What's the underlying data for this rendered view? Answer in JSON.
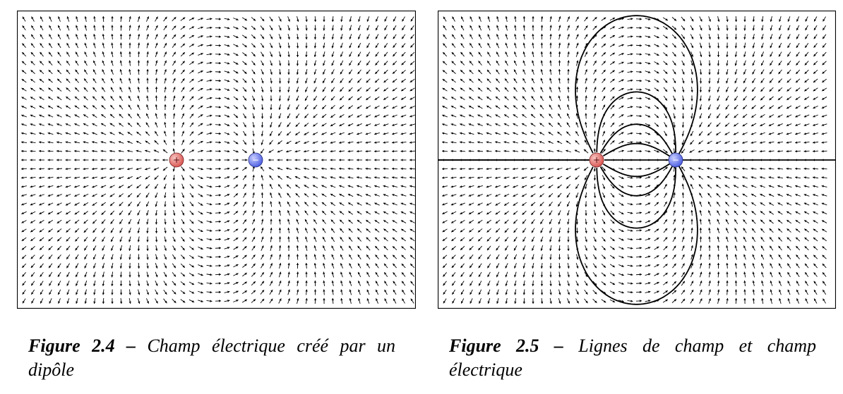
{
  "figures": [
    {
      "label": "Figure 2.4 –",
      "caption": "Champ électrique créé par un dipôle",
      "charges": [
        {
          "sign": "+",
          "color": "#d9534f"
        },
        {
          "sign": "−",
          "color": "#4a5ce0"
        }
      ]
    },
    {
      "label": "Figure 2.5 –",
      "caption": "Lignes de champ et champ électrique",
      "charges": [
        {
          "sign": "+",
          "color": "#d9534f"
        },
        {
          "sign": "−",
          "color": "#4a5ce0"
        }
      ]
    }
  ]
}
